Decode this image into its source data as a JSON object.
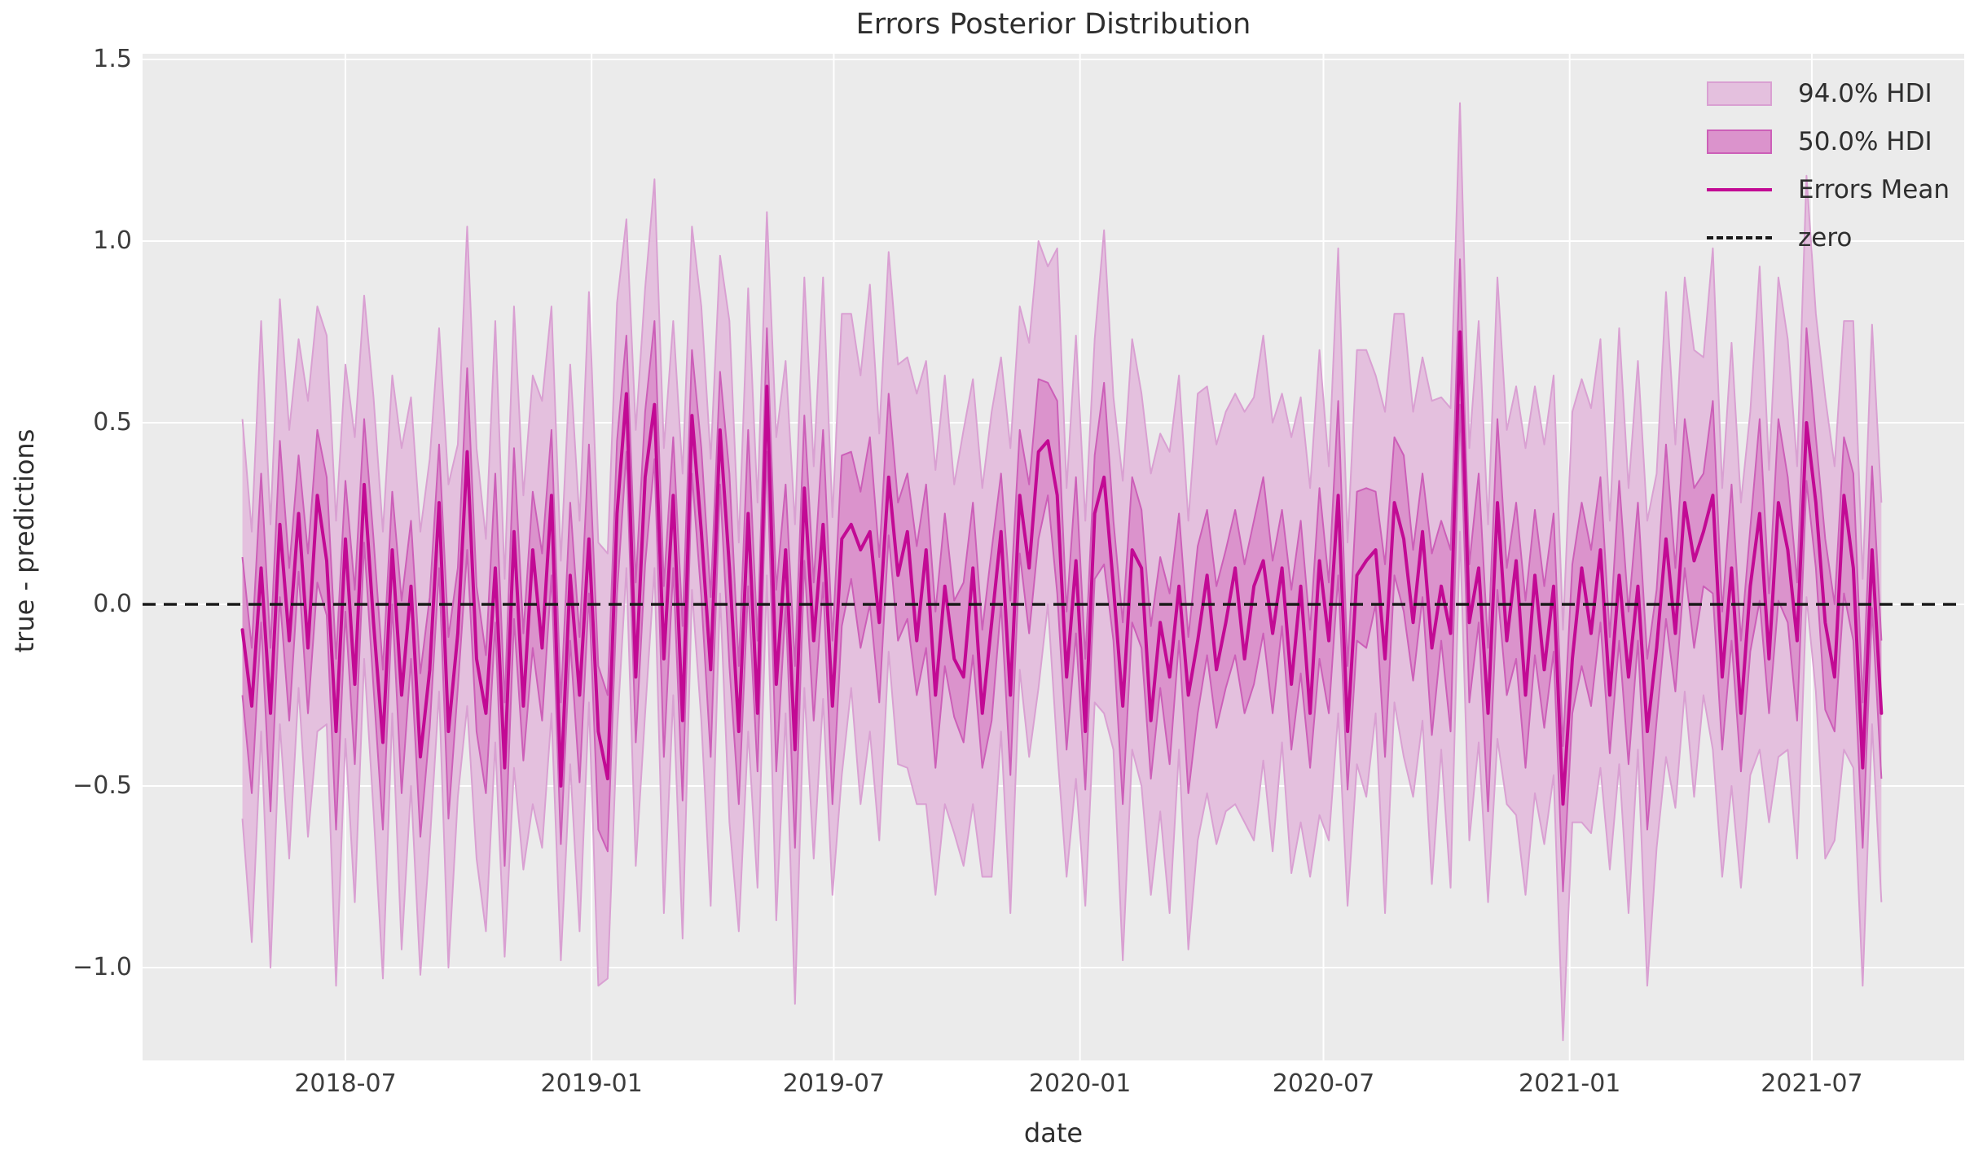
{
  "figure": {
    "background_color": "#ffffff"
  },
  "legend": {
    "position": "upper right",
    "items": [
      {
        "key": "hdi94",
        "label": "94.0% HDI",
        "swatch": "band",
        "fill": "#e4c0de",
        "edge": "#d9a0d2"
      },
      {
        "key": "hdi50",
        "label": "50.0% HDI",
        "swatch": "band",
        "fill": "#db93cc",
        "edge": "#cc5fb8"
      },
      {
        "key": "mean",
        "label": "Errors Mean",
        "swatch": "line",
        "color": "#c20a94"
      },
      {
        "key": "zero",
        "label": "zero",
        "swatch": "dashed-line",
        "color": "#1a1a1a"
      }
    ]
  },
  "chart_data": {
    "type": "line",
    "title": "Errors Posterior Distribution",
    "xlabel": "date",
    "ylabel": "true - predictions",
    "background_color": "#ebebeb",
    "grid": true,
    "grid_color": "#ffffff",
    "legend_position": "upper right",
    "ylim": [
      -1.26,
      1.52
    ],
    "y_ticks": [
      {
        "label": "1.5",
        "value": 1.5
      },
      {
        "label": "1.0",
        "value": 1.0
      },
      {
        "label": "0.5",
        "value": 0.5
      },
      {
        "label": "0.0",
        "value": 0.0
      },
      {
        "label": "−0.5",
        "value": -0.5
      },
      {
        "label": "−1.0",
        "value": -1.0
      }
    ],
    "x_ticks": [
      {
        "label": "2018-07",
        "date": "2018-07-01"
      },
      {
        "label": "2019-01",
        "date": "2019-01-01"
      },
      {
        "label": "2019-07",
        "date": "2019-07-01"
      },
      {
        "label": "2020-01",
        "date": "2020-01-01"
      },
      {
        "label": "2020-07",
        "date": "2020-07-01"
      },
      {
        "label": "2021-01",
        "date": "2021-01-01"
      },
      {
        "label": "2021-07",
        "date": "2021-07-01"
      }
    ],
    "x_start_date": "2018-04-15",
    "x_interval_days": 7,
    "series": {
      "mean": {
        "name": "Errors Mean",
        "color": "#c20a94",
        "values": [
          -0.07,
          -0.28,
          0.1,
          -0.3,
          0.22,
          -0.1,
          0.25,
          -0.12,
          0.3,
          0.12,
          -0.35,
          0.18,
          -0.22,
          0.33,
          -0.05,
          -0.38,
          0.15,
          -0.25,
          0.05,
          -0.42,
          -0.18,
          0.28,
          -0.35,
          -0.08,
          0.42,
          -0.15,
          -0.3,
          0.1,
          -0.45,
          0.2,
          -0.28,
          0.15,
          -0.12,
          0.3,
          -0.5,
          0.08,
          -0.25,
          0.18,
          -0.35,
          -0.48,
          0.25,
          0.58,
          -0.2,
          0.35,
          0.55,
          -0.15,
          0.3,
          -0.32,
          0.52,
          0.2,
          -0.18,
          0.48,
          0.1,
          -0.35,
          0.25,
          -0.3,
          0.6,
          -0.22,
          0.15,
          -0.4,
          0.32,
          -0.1,
          0.22,
          -0.28,
          0.18,
          0.22,
          0.15,
          0.2,
          -0.05,
          0.35,
          0.08,
          0.2,
          -0.1,
          0.15,
          -0.25,
          0.05,
          -0.15,
          -0.2,
          0.1,
          -0.3,
          -0.05,
          0.2,
          -0.25,
          0.3,
          0.1,
          0.42,
          0.45,
          0.3,
          -0.2,
          0.12,
          -0.35,
          0.25,
          0.35,
          0.05,
          -0.28,
          0.15,
          0.1,
          -0.32,
          -0.05,
          -0.2,
          0.05,
          -0.25,
          -0.1,
          0.08,
          -0.18,
          -0.05,
          0.1,
          -0.15,
          0.05,
          0.12,
          -0.08,
          0.1,
          -0.22,
          0.05,
          -0.3,
          0.12,
          -0.1,
          0.3,
          -0.35,
          0.08,
          0.12,
          0.15,
          -0.15,
          0.28,
          0.18,
          -0.05,
          0.2,
          -0.12,
          0.05,
          -0.08,
          0.75,
          -0.05,
          0.1,
          -0.3,
          0.28,
          -0.1,
          0.12,
          -0.25,
          0.08,
          -0.18,
          0.05,
          -0.55,
          -0.15,
          0.1,
          -0.08,
          0.15,
          -0.25,
          0.08,
          -0.2,
          0.05,
          -0.35,
          -0.12,
          0.18,
          -0.08,
          0.28,
          0.12,
          0.2,
          0.3,
          -0.2,
          0.1,
          -0.3,
          0.05,
          0.25,
          -0.15,
          0.28,
          0.15,
          -0.1,
          0.5,
          0.28,
          -0.05,
          -0.2,
          0.3,
          0.1,
          -0.45,
          0.15,
          -0.3
        ]
      },
      "hdi94": {
        "name": "94.0% HDI",
        "fill": "#e4c0de",
        "edge": "#d9a0d2",
        "lower": [
          -0.59,
          -0.93,
          -0.35,
          -1.0,
          -0.33,
          -0.7,
          -0.23,
          -0.64,
          -0.35,
          -0.33,
          -1.05,
          -0.37,
          -0.82,
          -0.15,
          -0.57,
          -1.03,
          -0.3,
          -0.95,
          -0.5,
          -1.02,
          -0.66,
          -0.24,
          -1.0,
          -0.53,
          -0.28,
          -0.7,
          -0.9,
          -0.38,
          -0.97,
          -0.45,
          -0.73,
          -0.55,
          -0.67,
          -0.3,
          -0.98,
          -0.44,
          -0.9,
          -0.27,
          -1.05,
          -1.03,
          -0.35,
          0.1,
          -0.72,
          -0.3,
          0.1,
          -0.85,
          -0.25,
          -0.92,
          0.04,
          -0.32,
          -0.83,
          0.03,
          -0.6,
          -0.9,
          -0.35,
          -0.78,
          0.08,
          -0.87,
          -0.3,
          -1.1,
          -0.23,
          -0.7,
          -0.26,
          -0.8,
          -0.47,
          -0.23,
          -0.55,
          -0.35,
          -0.65,
          -0.13,
          -0.44,
          -0.45,
          -0.55,
          -0.55,
          -0.8,
          -0.55,
          -0.63,
          -0.72,
          -0.55,
          -0.75,
          -0.75,
          -0.35,
          -0.85,
          -0.18,
          -0.42,
          -0.23,
          0.0,
          -0.4,
          -0.75,
          -0.48,
          -0.83,
          -0.27,
          -0.3,
          -0.4,
          -0.98,
          -0.4,
          -0.5,
          -0.8,
          -0.57,
          -0.85,
          -0.4,
          -0.95,
          -0.65,
          -0.52,
          -0.66,
          -0.57,
          -0.55,
          -0.6,
          -0.65,
          -0.43,
          -0.68,
          -0.38,
          -0.74,
          -0.6,
          -0.75,
          -0.58,
          -0.65,
          -0.3,
          -0.83,
          -0.44,
          -0.53,
          -0.3,
          -0.85,
          -0.27,
          -0.42,
          -0.53,
          -0.32,
          -0.77,
          -0.4,
          -0.78,
          0.2,
          -0.65,
          -0.38,
          -0.82,
          -0.37,
          -0.55,
          -0.58,
          -0.8,
          -0.52,
          -0.66,
          -0.47,
          -1.2,
          -0.6,
          -0.6,
          -0.63,
          -0.45,
          -0.73,
          -0.44,
          -0.85,
          -0.4,
          -1.05,
          -0.67,
          -0.42,
          -0.56,
          -0.24,
          -0.53,
          -0.25,
          -0.4,
          -0.75,
          -0.5,
          -0.78,
          -0.47,
          -0.4,
          -0.6,
          -0.42,
          -0.4,
          -0.7,
          0.02,
          -0.24,
          -0.7,
          -0.65,
          -0.4,
          -0.45,
          -1.05,
          -0.33,
          -0.82
        ],
        "upper": [
          0.51,
          0.2,
          0.78,
          0.22,
          0.84,
          0.48,
          0.73,
          0.56,
          0.82,
          0.74,
          0.23,
          0.66,
          0.46,
          0.85,
          0.57,
          0.2,
          0.63,
          0.43,
          0.57,
          0.2,
          0.4,
          0.76,
          0.33,
          0.44,
          1.04,
          0.43,
          0.18,
          0.78,
          0.07,
          0.82,
          0.3,
          0.63,
          0.56,
          0.82,
          0.12,
          0.66,
          0.23,
          0.86,
          0.17,
          0.14,
          0.83,
          1.06,
          0.48,
          0.87,
          1.17,
          0.43,
          0.78,
          0.36,
          1.04,
          0.82,
          0.4,
          0.96,
          0.78,
          0.17,
          0.87,
          0.28,
          1.08,
          0.46,
          0.67,
          0.22,
          0.9,
          0.38,
          0.9,
          0.24,
          0.8,
          0.8,
          0.63,
          0.88,
          0.47,
          0.97,
          0.66,
          0.68,
          0.58,
          0.67,
          0.37,
          0.63,
          0.33,
          0.48,
          0.62,
          0.32,
          0.53,
          0.68,
          0.43,
          0.82,
          0.72,
          1.0,
          0.93,
          0.98,
          0.32,
          0.74,
          0.23,
          0.73,
          1.03,
          0.57,
          0.34,
          0.73,
          0.58,
          0.36,
          0.47,
          0.42,
          0.63,
          0.23,
          0.58,
          0.6,
          0.44,
          0.53,
          0.58,
          0.53,
          0.57,
          0.74,
          0.5,
          0.58,
          0.46,
          0.57,
          0.32,
          0.7,
          0.38,
          0.98,
          0.17,
          0.7,
          0.7,
          0.63,
          0.53,
          0.8,
          0.8,
          0.53,
          0.68,
          0.56,
          0.57,
          0.54,
          1.38,
          0.43,
          0.78,
          0.22,
          0.9,
          0.48,
          0.6,
          0.43,
          0.6,
          0.44,
          0.63,
          -0.07,
          0.53,
          0.62,
          0.54,
          0.73,
          0.23,
          0.76,
          0.32,
          0.67,
          0.23,
          0.36,
          0.86,
          0.44,
          0.9,
          0.7,
          0.68,
          0.98,
          0.32,
          0.72,
          0.28,
          0.53,
          0.93,
          0.37,
          0.9,
          0.73,
          0.38,
          1.18,
          0.8,
          0.57,
          0.38,
          0.78,
          0.78,
          0.07,
          0.77,
          0.28
        ]
      },
      "hdi50": {
        "name": "50.0% HDI",
        "fill": "#db93cc",
        "edge": "#cc5fb8",
        "lower": [
          -0.25,
          -0.52,
          -0.05,
          -0.57,
          0.02,
          -0.32,
          0.09,
          -0.3,
          0.06,
          -0.03,
          -0.62,
          -0.02,
          -0.44,
          0.17,
          -0.23,
          -0.62,
          0.0,
          -0.52,
          -0.15,
          -0.64,
          -0.34,
          0.1,
          -0.59,
          -0.23,
          0.15,
          -0.35,
          -0.52,
          -0.05,
          -0.72,
          -0.04,
          -0.43,
          -0.12,
          -0.32,
          0.08,
          -0.66,
          -0.1,
          -0.49,
          0.03,
          -0.62,
          -0.68,
          0.03,
          0.42,
          -0.38,
          0.11,
          0.4,
          -0.42,
          0.1,
          -0.54,
          0.36,
          0.02,
          -0.42,
          0.33,
          -0.17,
          -0.55,
          0.05,
          -0.46,
          0.42,
          -0.46,
          0.0,
          -0.67,
          0.12,
          -0.32,
          0.06,
          -0.55,
          -0.06,
          0.07,
          -0.12,
          0.0,
          -0.27,
          0.19,
          -0.1,
          -0.04,
          -0.25,
          -0.12,
          -0.45,
          -0.17,
          -0.31,
          -0.38,
          -0.14,
          -0.45,
          -0.32,
          0.0,
          -0.47,
          0.14,
          -0.08,
          0.18,
          0.3,
          0.03,
          -0.4,
          -0.08,
          -0.51,
          0.07,
          0.11,
          -0.1,
          -0.55,
          -0.05,
          -0.12,
          -0.48,
          -0.23,
          -0.44,
          -0.1,
          -0.52,
          -0.3,
          -0.14,
          -0.34,
          -0.23,
          -0.14,
          -0.3,
          -0.22,
          -0.08,
          -0.3,
          -0.06,
          -0.4,
          -0.19,
          -0.45,
          -0.15,
          -0.3,
          0.08,
          -0.51,
          -0.1,
          -0.12,
          0.0,
          -0.42,
          0.08,
          -0.02,
          -0.21,
          0.02,
          -0.36,
          -0.1,
          -0.35,
          0.55,
          -0.27,
          -0.05,
          -0.57,
          0.04,
          -0.25,
          -0.15,
          -0.45,
          -0.14,
          -0.34,
          -0.13,
          -0.79,
          -0.3,
          -0.17,
          -0.28,
          -0.05,
          -0.41,
          -0.1,
          -0.44,
          -0.1,
          -0.62,
          -0.32,
          -0.04,
          -0.24,
          0.1,
          -0.12,
          0.05,
          0.03,
          -0.4,
          -0.1,
          -0.46,
          -0.13,
          0.01,
          -0.3,
          0.01,
          -0.05,
          -0.32,
          0.34,
          0.1,
          -0.29,
          -0.35,
          0.03,
          -0.1,
          -0.67,
          -0.01,
          -0.48
        ],
        "upper": [
          0.13,
          -0.12,
          0.36,
          -0.12,
          0.45,
          0.1,
          0.41,
          0.14,
          0.48,
          0.35,
          -0.15,
          0.34,
          0.04,
          0.51,
          0.18,
          -0.18,
          0.31,
          0.01,
          0.23,
          -0.19,
          0.02,
          0.44,
          -0.09,
          0.1,
          0.65,
          0.05,
          -0.14,
          0.36,
          -0.27,
          0.43,
          -0.08,
          0.31,
          0.14,
          0.48,
          -0.27,
          0.28,
          -0.09,
          0.44,
          -0.17,
          -0.25,
          0.45,
          0.74,
          0.06,
          0.53,
          0.78,
          0.05,
          0.46,
          -0.06,
          0.7,
          0.43,
          0.02,
          0.64,
          0.36,
          -0.17,
          0.48,
          -0.1,
          0.76,
          0.04,
          0.33,
          -0.17,
          0.52,
          0.06,
          0.48,
          -0.1,
          0.41,
          0.42,
          0.31,
          0.46,
          0.13,
          0.58,
          0.28,
          0.36,
          0.16,
          0.33,
          -0.02,
          0.25,
          0.01,
          0.06,
          0.28,
          -0.07,
          0.15,
          0.36,
          0.01,
          0.48,
          0.33,
          0.62,
          0.61,
          0.56,
          -0.02,
          0.35,
          -0.15,
          0.41,
          0.61,
          0.23,
          -0.05,
          0.35,
          0.26,
          -0.06,
          0.13,
          0.03,
          0.25,
          -0.09,
          0.16,
          0.26,
          0.05,
          0.15,
          0.26,
          0.11,
          0.23,
          0.35,
          0.12,
          0.26,
          0.04,
          0.23,
          -0.07,
          0.32,
          0.06,
          0.56,
          -0.17,
          0.31,
          0.32,
          0.31,
          0.11,
          0.46,
          0.41,
          0.15,
          0.36,
          0.14,
          0.23,
          0.15,
          0.95,
          0.11,
          0.36,
          -0.12,
          0.51,
          0.1,
          0.28,
          0.01,
          0.26,
          0.05,
          0.25,
          -0.39,
          0.11,
          0.28,
          0.15,
          0.35,
          -0.09,
          0.34,
          -0.02,
          0.28,
          -0.15,
          0.04,
          0.44,
          0.1,
          0.51,
          0.32,
          0.36,
          0.56,
          -0.02,
          0.33,
          -0.1,
          0.21,
          0.51,
          0.03,
          0.51,
          0.35,
          0.06,
          0.76,
          0.46,
          0.18,
          0.0,
          0.46,
          0.36,
          -0.27,
          0.38,
          -0.1
        ]
      },
      "zero": {
        "name": "zero",
        "value": 0,
        "color": "#1a1a1a",
        "style": "dashed"
      }
    }
  }
}
